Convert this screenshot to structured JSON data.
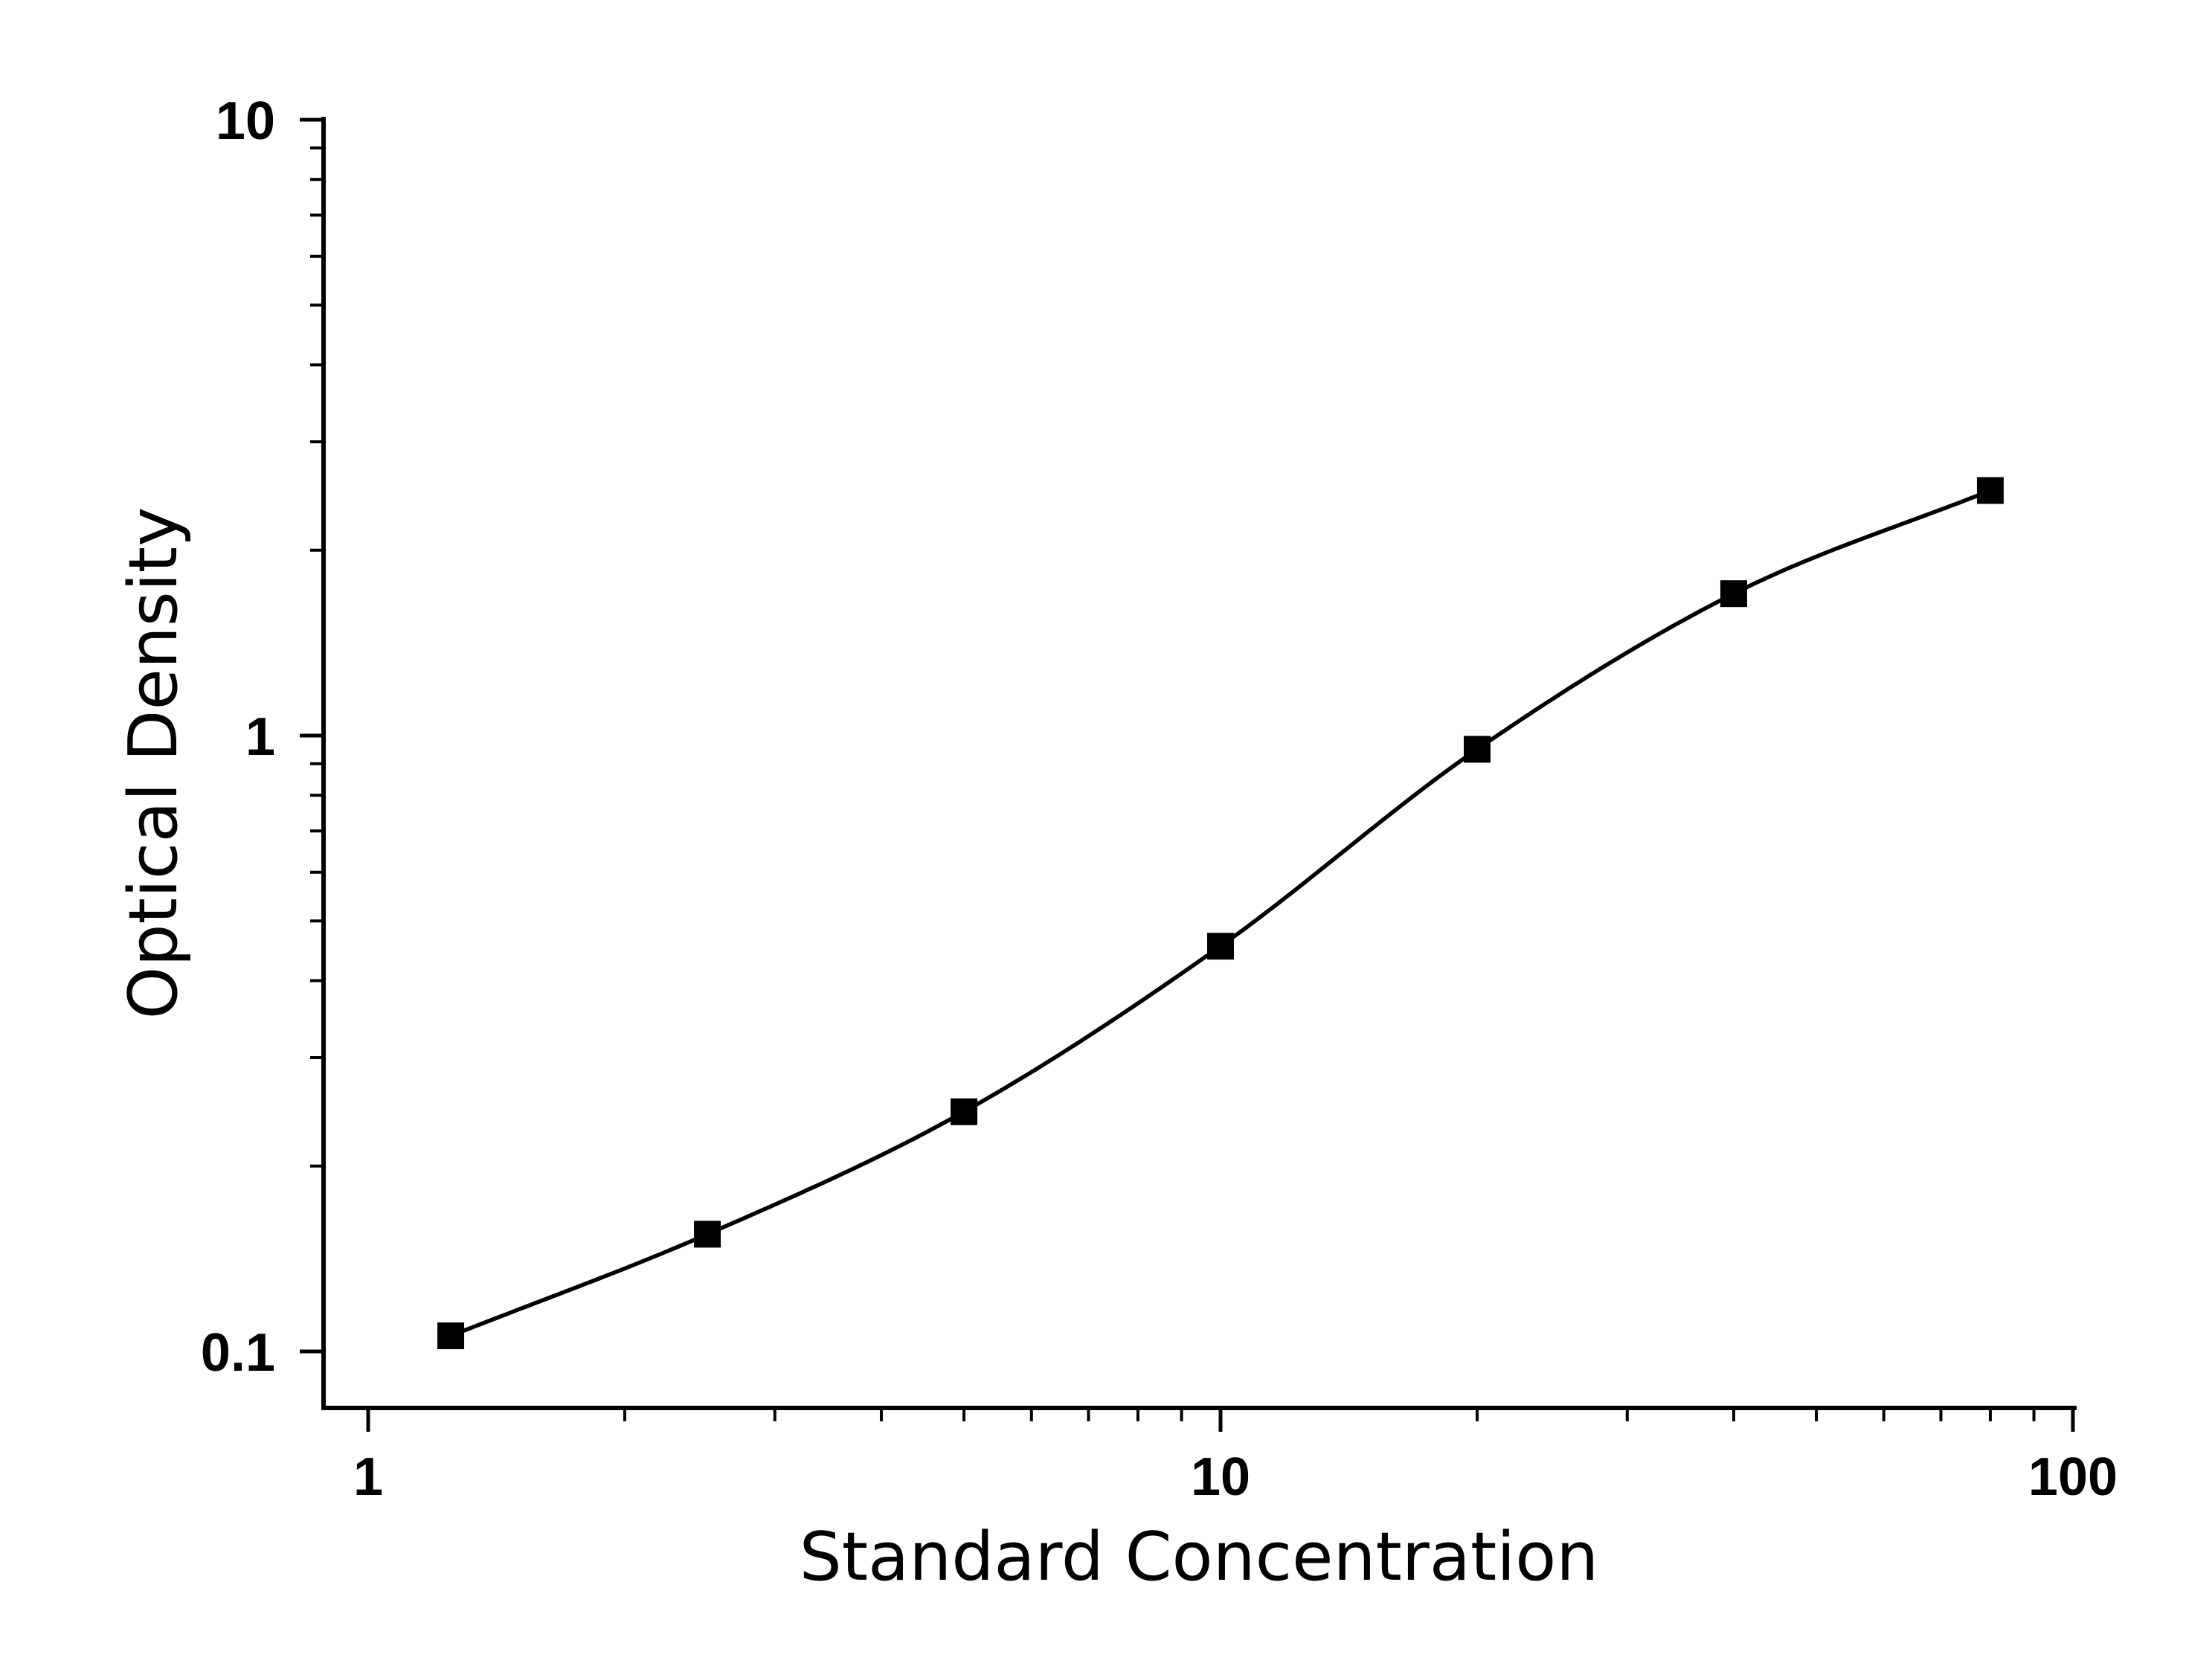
{
  "chart_data": {
    "type": "scatter",
    "title": "",
    "xlabel": "Standard Concentration",
    "ylabel": "Optical Density",
    "xscale": "log",
    "yscale": "log",
    "xlim": [
      1,
      100
    ],
    "ylim": [
      0.1,
      10
    ],
    "x_ticks": [
      "1",
      "10",
      "100"
    ],
    "y_ticks": [
      "0.1",
      "1",
      "10"
    ],
    "grid": false,
    "legend": "none",
    "marker": "square",
    "fit": "smooth fitted curve (4-parameter logistic)",
    "series": [
      {
        "x": [
          1.25,
          2.5,
          5,
          10,
          20,
          40,
          80
        ],
        "y": [
          0.106,
          0.155,
          0.245,
          0.455,
          0.95,
          1.7,
          2.5
        ]
      }
    ],
    "colors": {
      "marker": "#000000",
      "curve": "#000000",
      "axes": "#000000"
    }
  }
}
